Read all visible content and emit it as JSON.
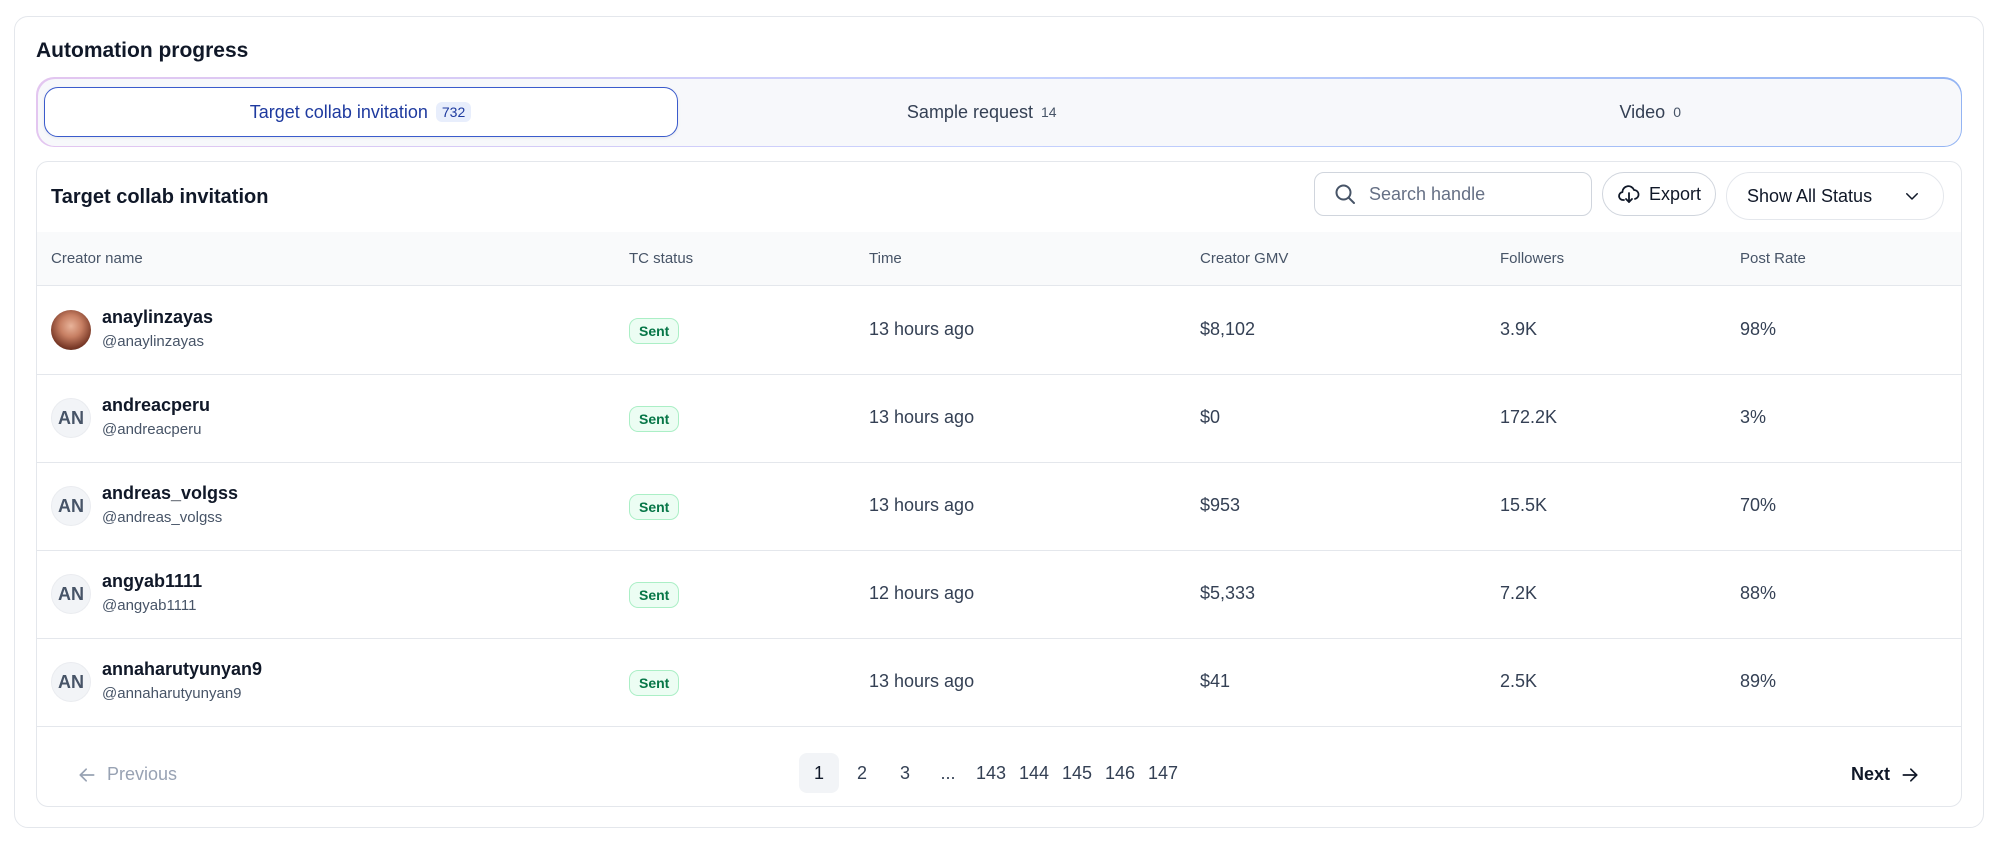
{
  "page_title": "Automation progress",
  "tabs": [
    {
      "label": "Target collab invitation",
      "count": "732"
    },
    {
      "label": "Sample request",
      "count": "14"
    },
    {
      "label": "Video",
      "count": "0"
    }
  ],
  "card": {
    "title": "Target collab invitation",
    "search_placeholder": "Search handle",
    "export_label": "Export",
    "status_filter": "Show All Status"
  },
  "table": {
    "headers": [
      "Creator name",
      "TC status",
      "Time",
      "Creator GMV",
      "Followers",
      "Post Rate"
    ],
    "rows": [
      {
        "avatar": "",
        "name": "anaylinzayas",
        "handle": "@anaylinzayas",
        "status": "Sent",
        "time": "13 hours ago",
        "gmv": "$8,102",
        "followers": "3.9K",
        "post_rate": "98%"
      },
      {
        "avatar": "AN",
        "name": "andreacperu",
        "handle": "@andreacperu",
        "status": "Sent",
        "time": "13 hours ago",
        "gmv": "$0",
        "followers": "172.2K",
        "post_rate": "3%"
      },
      {
        "avatar": "AN",
        "name": "andreas_volgss",
        "handle": "@andreas_volgss",
        "status": "Sent",
        "time": "13 hours ago",
        "gmv": "$953",
        "followers": "15.5K",
        "post_rate": "70%"
      },
      {
        "avatar": "AN",
        "name": "angyab1111",
        "handle": "@angyab1111",
        "status": "Sent",
        "time": "12 hours ago",
        "gmv": "$5,333",
        "followers": "7.2K",
        "post_rate": "88%"
      },
      {
        "avatar": "AN",
        "name": "annaharutyunyan9",
        "handle": "@annaharutyunyan9",
        "status": "Sent",
        "time": "13 hours ago",
        "gmv": "$41",
        "followers": "2.5K",
        "post_rate": "89%"
      }
    ]
  },
  "pagination": {
    "previous": "Previous",
    "next": "Next",
    "pages": [
      "1",
      "2",
      "3",
      "...",
      "143",
      "144",
      "145",
      "146",
      "147"
    ],
    "current": "1"
  }
}
